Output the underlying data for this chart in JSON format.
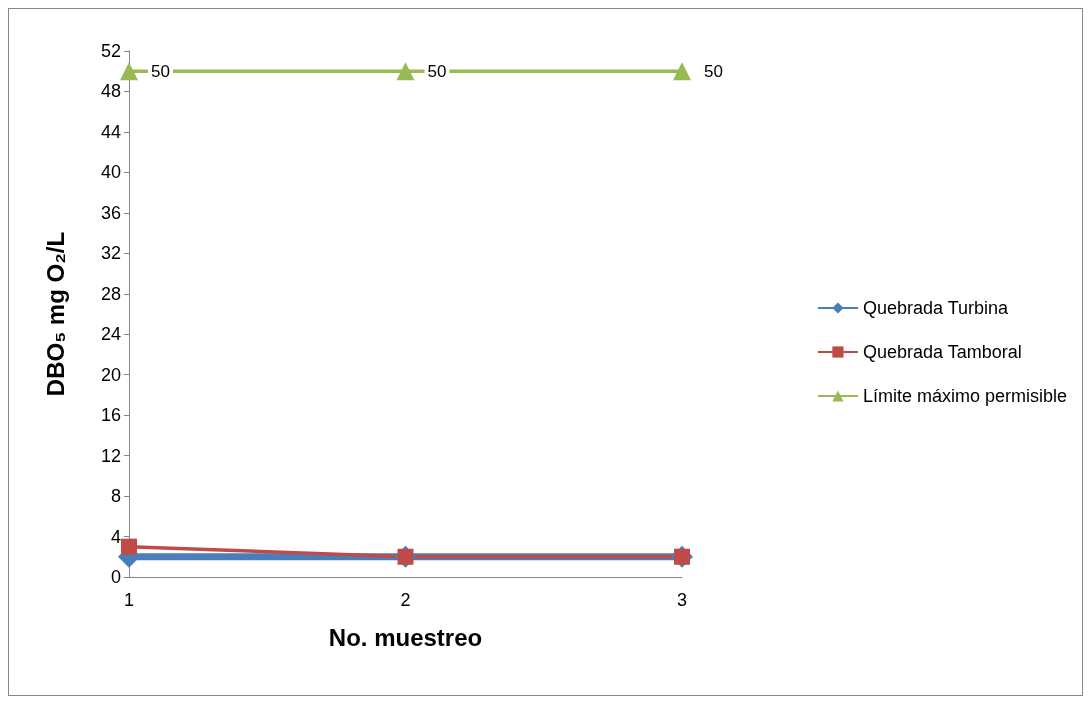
{
  "chart_data": {
    "type": "line",
    "xlabel": "No. muestreo",
    "ylabel": "DBO₅ mg O₂/L",
    "categories": [
      "1",
      "2",
      "3"
    ],
    "series": [
      {
        "name": "Quebrada Turbina",
        "color": "#4a7ebb",
        "marker": "diamond",
        "values": [
          2,
          2,
          2
        ]
      },
      {
        "name": "Quebrada Tamboral",
        "color": "#be4b48",
        "marker": "square",
        "values": [
          3,
          2,
          2
        ]
      },
      {
        "name": "Límite máximo permisible",
        "color": "#98b954",
        "marker": "triangle",
        "values": [
          50,
          50,
          50
        ],
        "value_labels": [
          "50",
          "50",
          "50"
        ]
      }
    ],
    "ylim": [
      0,
      52
    ],
    "yticks": [
      0,
      4,
      8,
      12,
      16,
      20,
      24,
      28,
      32,
      36,
      40,
      44,
      48,
      52
    ],
    "grid": false,
    "legend": "right"
  }
}
